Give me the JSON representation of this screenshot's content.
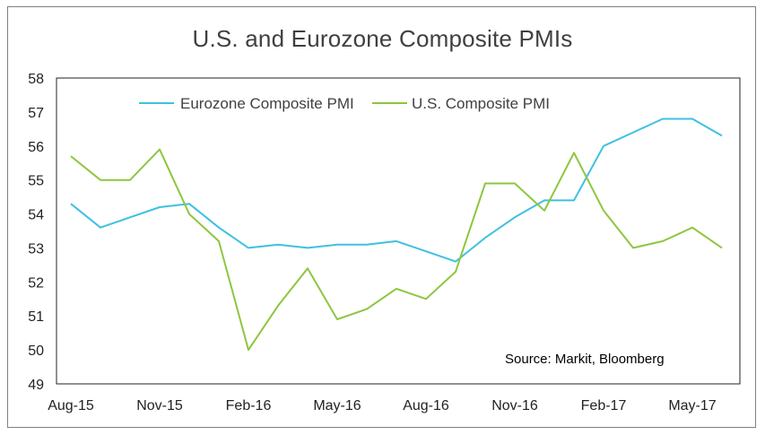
{
  "chart_data": {
    "type": "line",
    "title": "U.S. and Eurozone Composite PMIs",
    "xlabel": "",
    "ylabel": "",
    "ylim": [
      49,
      58
    ],
    "yticks": [
      "58",
      "57",
      "56",
      "55",
      "54",
      "53",
      "52",
      "51",
      "50",
      "49"
    ],
    "x": [
      "Aug-15",
      "Sep-15",
      "Oct-15",
      "Nov-15",
      "Dec-15",
      "Jan-16",
      "Feb-16",
      "Mar-16",
      "Apr-16",
      "May-16",
      "Jun-16",
      "Jul-16",
      "Aug-16",
      "Sep-16",
      "Oct-16",
      "Nov-16",
      "Dec-16",
      "Jan-17",
      "Feb-17",
      "Mar-17",
      "Apr-17",
      "May-17",
      "Jun-17"
    ],
    "xtick_labels": [
      "Aug-15",
      "Nov-15",
      "Feb-16",
      "May-16",
      "Aug-16",
      "Nov-16",
      "Feb-17",
      "May-17"
    ],
    "series": [
      {
        "name": "Eurozone Composite PMI",
        "color": "#3ec1e0",
        "values": [
          54.3,
          53.6,
          53.9,
          54.2,
          54.3,
          53.6,
          53.0,
          53.1,
          53.0,
          53.1,
          53.1,
          53.2,
          52.9,
          52.6,
          53.3,
          53.9,
          54.4,
          54.4,
          56.0,
          56.4,
          56.8,
          56.8,
          56.3
        ]
      },
      {
        "name": "U.S. Composite PMI",
        "color": "#8dc63f",
        "values": [
          55.7,
          55.0,
          55.0,
          55.9,
          54.0,
          53.2,
          50.0,
          51.3,
          52.4,
          50.9,
          51.2,
          51.8,
          51.5,
          52.3,
          54.9,
          54.9,
          54.1,
          55.8,
          54.1,
          53.0,
          53.2,
          53.6,
          53.0
        ]
      }
    ],
    "grid": false,
    "legend_position": "top",
    "annotation": "Source: Markit, Bloomberg"
  }
}
